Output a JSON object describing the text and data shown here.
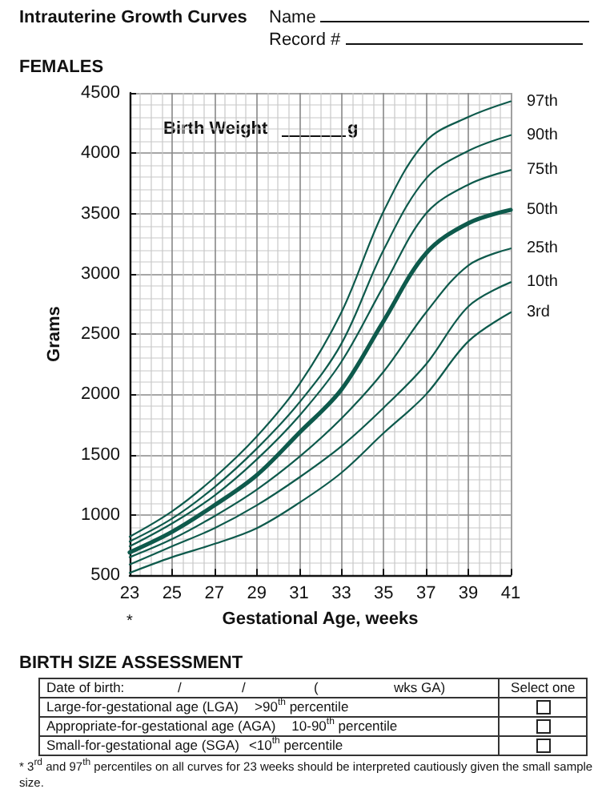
{
  "chart_data": {
    "type": "line",
    "title": "Intrauterine Growth Curves",
    "subtitle": "FEMALES",
    "xlabel": "Gestational Age, weeks",
    "ylabel": "Grams",
    "x": [
      23,
      25,
      27,
      29,
      31,
      33,
      35,
      37,
      39,
      41
    ],
    "series": [
      {
        "name": "97th",
        "color": "#0e5a4c",
        "values": [
          820,
          1030,
          1310,
          1650,
          2080,
          2680,
          3520,
          4100,
          4300,
          4430
        ]
      },
      {
        "name": "90th",
        "color": "#0e5a4c",
        "values": [
          780,
          970,
          1230,
          1550,
          1930,
          2420,
          3200,
          3790,
          4020,
          4150
        ]
      },
      {
        "name": "75th",
        "color": "#0e5a4c",
        "values": [
          740,
          930,
          1160,
          1460,
          1820,
          2270,
          2900,
          3500,
          3740,
          3860
        ]
      },
      {
        "name": "50th",
        "color": "#0e5a4c",
        "values": [
          690,
          860,
          1080,
          1330,
          1680,
          2040,
          2610,
          3170,
          3420,
          3530
        ]
      },
      {
        "name": "25th",
        "color": "#0e5a4c",
        "values": [
          650,
          800,
          990,
          1210,
          1480,
          1800,
          2190,
          2680,
          3070,
          3210
        ]
      },
      {
        "name": "10th",
        "color": "#0e5a4c",
        "values": [
          590,
          740,
          890,
          1080,
          1310,
          1570,
          1890,
          2250,
          2730,
          2930
        ]
      },
      {
        "name": "3rd",
        "color": "#0e5a4c",
        "values": [
          520,
          650,
          760,
          890,
          1100,
          1350,
          1680,
          2000,
          2440,
          2680
        ]
      }
    ],
    "xlim": [
      23,
      41
    ],
    "xticks": [
      23,
      25,
      27,
      29,
      31,
      33,
      35,
      37,
      39,
      41
    ],
    "ylim": [
      500,
      4500
    ],
    "yticks": [
      500,
      1000,
      1500,
      2000,
      2500,
      3000,
      3500,
      4000,
      4500
    ],
    "grid": true,
    "legend": false,
    "marker": "none",
    "line_style": "solid",
    "annotations": [
      "Name",
      "Record #",
      "Birth Weight",
      "g",
      "*",
      "BIRTH SIZE ASSESSMENT",
      "Date of birth:",
      "/",
      "/",
      "(",
      "wks GA)",
      "Select one",
      "Large-for-gestational age (LGA)",
      ">90$^{th}$ percentile",
      "Appropriate-for-gestational age (AGA)",
      "10-90$^{th}$ percentile",
      "Small-for-gestational age (SGA)",
      "<10$^{th}$ percentile",
      "* 3$^{rd}$ and 97$^{th}$ percentiles on all curves for 23 weeks should be interpreted cautiously given the small sample size."
    ]
  }
}
